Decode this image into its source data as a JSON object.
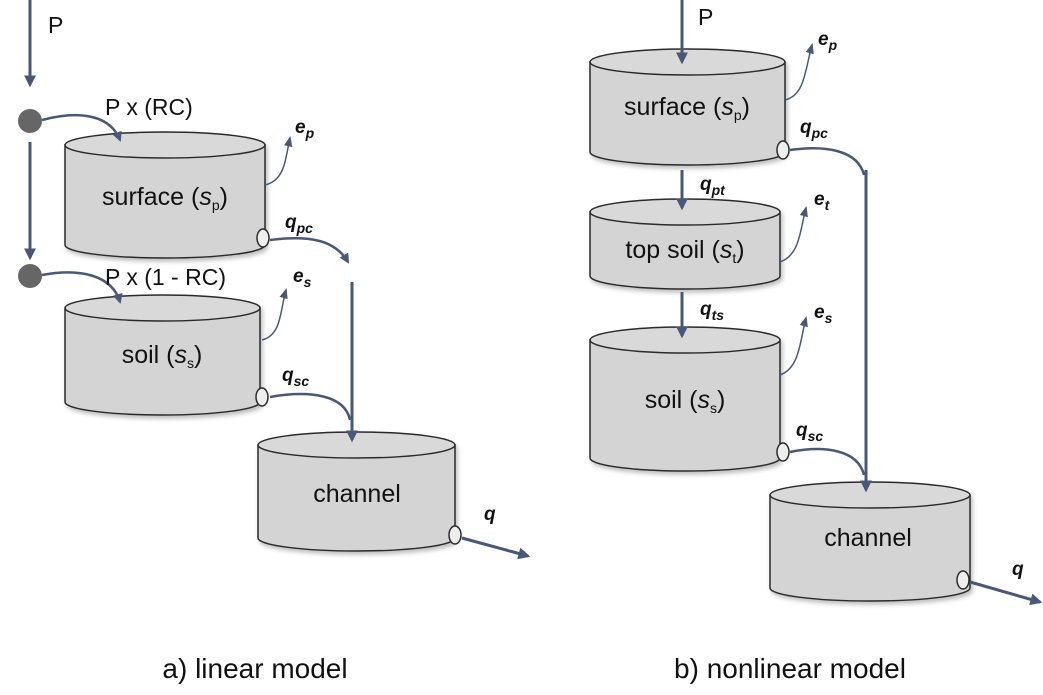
{
  "linear": {
    "precip": "P",
    "surface_input": "P x (RC)",
    "soil_input": "P x (1 - RC)",
    "stores": [
      {
        "prefix": "surface (",
        "var": "s",
        "sub": "p",
        "suffix": ")"
      },
      {
        "prefix": "soil (",
        "var": "s",
        "sub": "s",
        "suffix": ")"
      },
      {
        "prefix": "channel"
      }
    ],
    "fluxes": [
      {
        "var": "e",
        "sub": "p"
      },
      {
        "var": "q",
        "sub": "pc"
      },
      {
        "var": "e",
        "sub": "s"
      },
      {
        "var": "q",
        "sub": "sc"
      },
      {
        "var": "q"
      }
    ],
    "caption": "a) linear model"
  },
  "nonlinear": {
    "precip": "P",
    "stores": [
      {
        "prefix": "surface (",
        "var": "s",
        "sub": "p",
        "suffix": ")"
      },
      {
        "prefix": "top soil (",
        "var": "s",
        "sub": "t",
        "suffix": ")"
      },
      {
        "prefix": "soil (",
        "var": "s",
        "sub": "s",
        "suffix": ")"
      },
      {
        "prefix": "channel"
      }
    ],
    "fluxes": [
      {
        "var": "e",
        "sub": "p"
      },
      {
        "var": "q",
        "sub": "pc"
      },
      {
        "var": "q",
        "sub": "pt"
      },
      {
        "var": "e",
        "sub": "t"
      },
      {
        "var": "q",
        "sub": "ts"
      },
      {
        "var": "e",
        "sub": "s"
      },
      {
        "var": "q",
        "sub": "sc"
      },
      {
        "var": "q"
      }
    ],
    "caption": "b) nonlinear model"
  }
}
